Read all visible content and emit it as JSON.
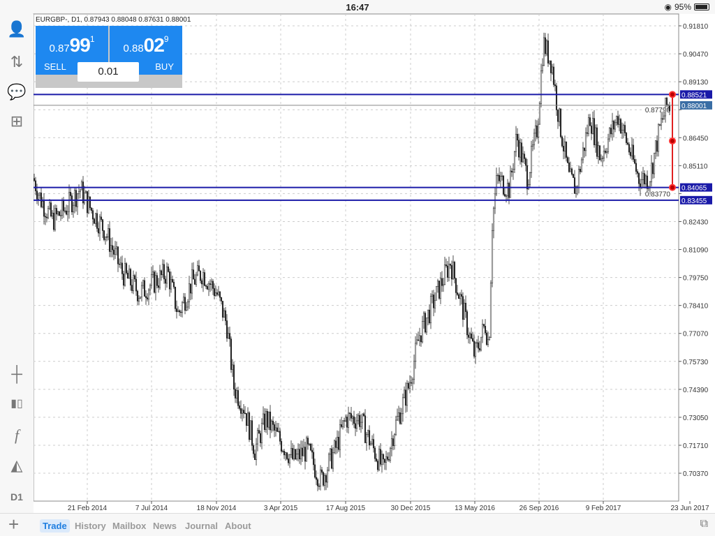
{
  "status_bar": {
    "time": "16:47",
    "battery": "95%",
    "battery_level": 0.95
  },
  "chart_header": {
    "info": "EURGBP-, D1, 0.87943 0.88048 0.87631 0.88001"
  },
  "trade_panel": {
    "sell": {
      "prefix": "0.87",
      "big": "99",
      "sup": "1",
      "label": "SELL"
    },
    "buy": {
      "prefix": "0.88",
      "big": "02",
      "sup": "9",
      "label": "BUY"
    },
    "volume": "0.01"
  },
  "left_toolbar": {
    "timeframe": "D1",
    "icons": [
      "account-icon",
      "trade-arrows-icon",
      "chat-icon",
      "add-document-icon",
      "crosshair-icon",
      "candlestick-icon",
      "indicator-f-icon",
      "objects-icon"
    ]
  },
  "bottom_tabs": [
    "Trade",
    "History",
    "Mailbox",
    "News",
    "Journal",
    "About"
  ],
  "active_tab": "Trade",
  "colors": {
    "accent": "#1e88f0",
    "level_line": "#1a1aa8",
    "measure_line": "#e02020",
    "current_price": "#3a6ea5"
  },
  "chart_data": {
    "type": "candlestick",
    "symbol": "EURGBP-",
    "timeframe": "D1",
    "y_ticks": [
      "0.91810",
      "0.90470",
      "0.89130",
      "0.87790",
      "0.86450",
      "0.85110",
      "0.83770",
      "0.82430",
      "0.81090",
      "0.79750",
      "0.78410",
      "0.77070",
      "0.75730",
      "0.74390",
      "0.73050",
      "0.71710",
      "0.70370"
    ],
    "ylim": [
      0.6985,
      0.9235
    ],
    "x_ticks": [
      "21 Feb 2014",
      "7 Jul 2014",
      "18 Nov 2014",
      "3 Apr 2015",
      "17 Aug 2015",
      "30 Dec 2015",
      "13 May 2016",
      "26 Sep 2016",
      "9 Feb 2017",
      "23 Jun 2017"
    ],
    "grid": true,
    "price_path": [
      [
        "2013-10-31",
        0.845
      ],
      [
        "2013-11-15",
        0.835
      ],
      [
        "2013-12-10",
        0.825
      ],
      [
        "2014-01-05",
        0.83
      ],
      [
        "2014-02-06",
        0.84
      ],
      [
        "2014-03-01",
        0.83
      ],
      [
        "2014-03-30",
        0.82
      ],
      [
        "2014-05-05",
        0.8
      ],
      [
        "2014-06-11",
        0.79
      ],
      [
        "2014-07-10",
        0.795
      ],
      [
        "2014-08-09",
        0.8
      ],
      [
        "2014-08-31",
        0.78
      ],
      [
        "2014-09-28",
        0.795
      ],
      [
        "2014-10-21",
        0.8
      ],
      [
        "2014-11-20",
        0.79
      ],
      [
        "2014-12-11",
        0.775
      ],
      [
        "2014-12-26",
        0.745
      ],
      [
        "2015-01-17",
        0.735
      ],
      [
        "2015-02-08",
        0.715
      ],
      [
        "2015-03-03",
        0.73
      ],
      [
        "2015-03-31",
        0.72
      ],
      [
        "2015-04-30",
        0.71
      ],
      [
        "2015-05-29",
        0.715
      ],
      [
        "2015-06-27",
        0.7
      ],
      [
        "2015-07-27",
        0.715
      ],
      [
        "2015-08-18",
        0.73
      ],
      [
        "2015-09-16",
        0.73
      ],
      [
        "2015-10-16",
        0.715
      ],
      [
        "2015-11-06",
        0.705
      ],
      [
        "2015-11-28",
        0.725
      ],
      [
        "2015-12-28",
        0.745
      ],
      [
        "2016-01-20",
        0.77
      ],
      [
        "2016-02-17",
        0.785
      ],
      [
        "2016-03-25",
        0.805
      ],
      [
        "2016-04-17",
        0.785
      ],
      [
        "2016-05-15",
        0.76
      ],
      [
        "2016-06-06",
        0.775
      ],
      [
        "2016-06-14",
        0.765
      ],
      [
        "2016-06-21",
        0.825
      ],
      [
        "2016-07-01",
        0.845
      ],
      [
        "2016-07-27",
        0.84
      ],
      [
        "2016-08-11",
        0.865
      ],
      [
        "2016-09-03",
        0.845
      ],
      [
        "2016-09-24",
        0.87
      ],
      [
        "2016-10-06",
        0.91
      ],
      [
        "2016-10-24",
        0.9
      ],
      [
        "2016-11-07",
        0.875
      ],
      [
        "2016-11-29",
        0.845
      ],
      [
        "2016-12-14",
        0.84
      ],
      [
        "2017-01-12",
        0.875
      ],
      [
        "2017-02-03",
        0.855
      ],
      [
        "2017-03-12",
        0.875
      ],
      [
        "2017-04-03",
        0.86
      ],
      [
        "2017-04-25",
        0.845
      ],
      [
        "2017-05-17",
        0.845
      ],
      [
        "2017-06-09",
        0.87
      ],
      [
        "2017-06-23",
        0.88
      ],
      [
        "2017-06-30",
        0.88
      ]
    ],
    "horizontal_levels": [
      {
        "price": "0.88521",
        "color": "#1a1aa8"
      },
      {
        "price": "0.84065",
        "color": "#1a1aa8"
      },
      {
        "price": "0.83455",
        "color": "#1a1aa8"
      }
    ],
    "current_price": "0.88001",
    "measure_line": {
      "from": 0.88521,
      "to": 0.84065
    }
  }
}
